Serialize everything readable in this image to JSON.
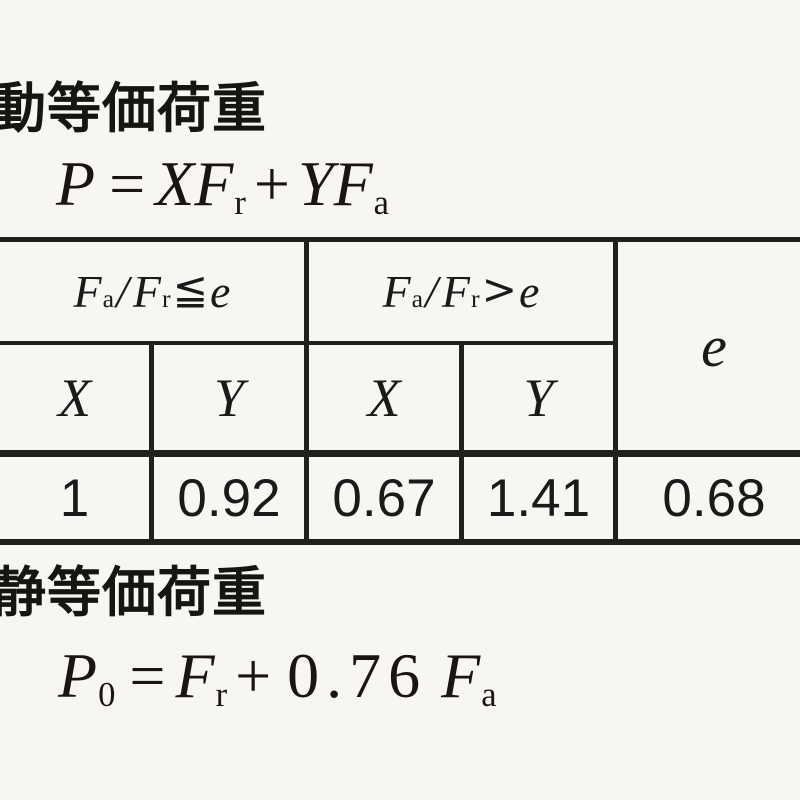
{
  "colors": {
    "background": "#f7f6f3",
    "ink": "#1a1a1a",
    "rule": "#21201e"
  },
  "dynamic_section": {
    "heading": "動等価荷重",
    "formula": {
      "lhs": "P",
      "eq": "=",
      "coef1": "X",
      "var1": "F",
      "sub1": "r",
      "plus": "+",
      "coef2": "Y",
      "var2": "F",
      "sub2": "a"
    }
  },
  "table": {
    "cond_le": {
      "F1": "F",
      "s1": "a",
      "slash": "/",
      "F2": "F",
      "s2": "r",
      "op": "≦",
      "rhs": "e"
    },
    "cond_gt": {
      "F1": "F",
      "s1": "a",
      "slash": "/",
      "F2": "F",
      "s2": "r",
      "op": ">",
      "rhs": "e"
    },
    "e_header": "e",
    "sub_headers": [
      "X",
      "Y",
      "X",
      "Y"
    ],
    "values": [
      "1",
      "0.92",
      "0.67",
      "1.41",
      "0.68"
    ]
  },
  "static_section": {
    "heading": "静等価荷重",
    "formula": {
      "lhs": "P",
      "lhs_sub": "0",
      "eq": "=",
      "var1": "F",
      "sub1": "r",
      "plus": "+",
      "coef": "0.76",
      "var2": "F",
      "sub2": "a"
    }
  }
}
